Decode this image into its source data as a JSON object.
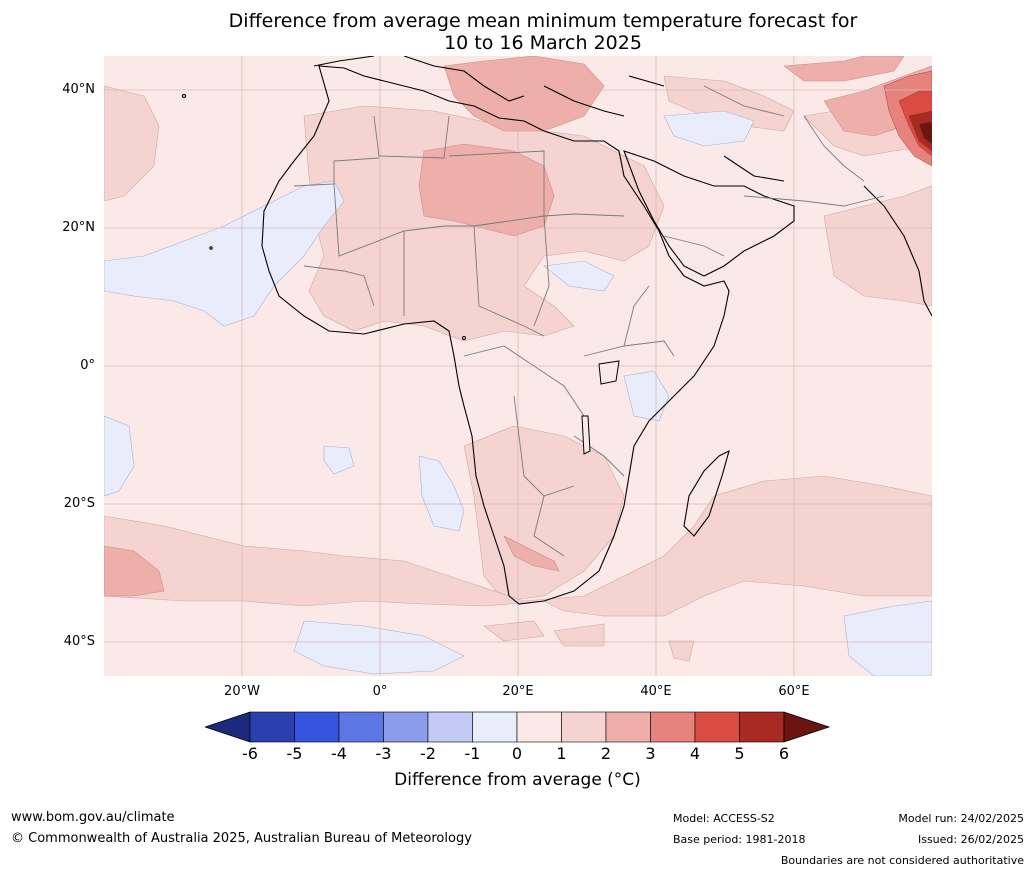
{
  "title": {
    "line1": "Difference from average mean minimum temperature forecast for",
    "line2": "10 to 16 March 2025"
  },
  "map": {
    "region": "Africa",
    "lat_ticks": [
      "40°N",
      "20°N",
      "0°",
      "20°S",
      "40°S"
    ],
    "lon_ticks": [
      "20°W",
      "0°",
      "20°E",
      "40°E",
      "60°E"
    ],
    "background_anomaly_color": "#fbe9e7",
    "graticule_color": "#d8b8b8"
  },
  "colorbar": {
    "labels": [
      "-6",
      "-5",
      "-4",
      "-3",
      "-2",
      "-1",
      "0",
      "1",
      "2",
      "3",
      "4",
      "5",
      "6"
    ],
    "colors": [
      "#1b2a7a",
      "#2b40b0",
      "#3654e0",
      "#5c76e4",
      "#8a9ceb",
      "#c3cbf4",
      "#e8ecfb",
      "#fbe9e7",
      "#f5d3d0",
      "#eeaeaa",
      "#e6837d",
      "#d94c42",
      "#a82a22",
      "#6b1511"
    ],
    "title": "Difference from average ($^\\circ$C)",
    "title_display": "Difference from average (°C)"
  },
  "footer": {
    "website": "www.bom.gov.au/climate",
    "copyright": "© Commonwealth of Australia 2025, Australian Bureau of Meteorology",
    "model": "Model: ACCESS-S2",
    "base_period": "Base period: 1981-2018",
    "model_run": "Model run: 24/02/2025",
    "issued": "Issued: 26/02/2025",
    "disclaimer": "Boundaries are not considered authoritative"
  }
}
